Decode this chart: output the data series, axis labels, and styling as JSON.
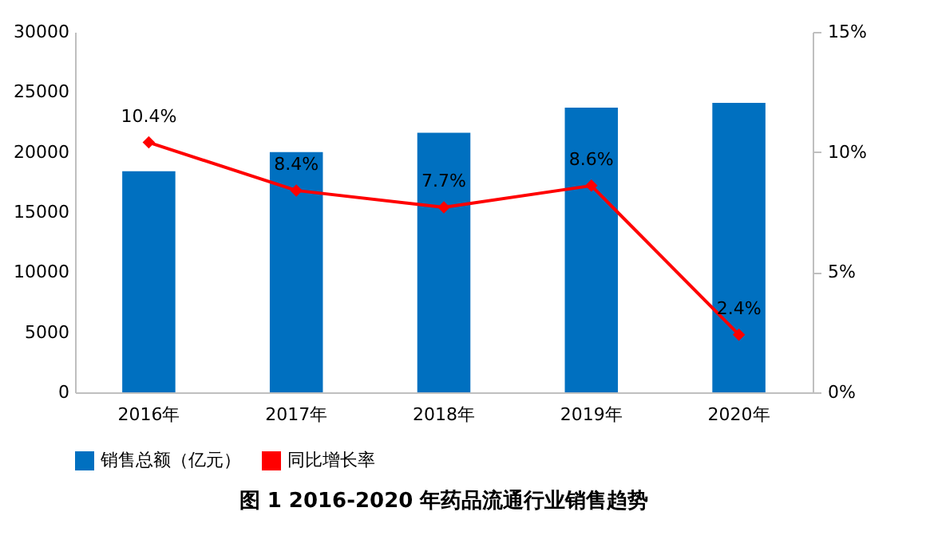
{
  "chart_data": {
    "type": "bar",
    "title": "图 1   2016-2020 年药品流通行业销售趋势",
    "categories": [
      "2016年",
      "2017年",
      "2018年",
      "2019年",
      "2020年"
    ],
    "series": [
      {
        "name": "销售总额（亿元）",
        "color": "#0070c0",
        "values": [
          18400,
          20000,
          21600,
          23700,
          24100
        ]
      },
      {
        "name": "同比增长率",
        "type": "line",
        "axis": "y2",
        "color": "#ff0000",
        "marker": "diamond",
        "values": [
          10.4,
          8.4,
          7.7,
          8.6,
          2.4
        ],
        "value_labels": [
          "10.4%",
          "8.4%",
          "7.7%",
          "8.6%",
          "2.4%"
        ]
      }
    ],
    "ylim": [
      0,
      30000
    ],
    "yticks": [
      0,
      5000,
      10000,
      15000,
      20000,
      25000,
      30000
    ],
    "y2lim": [
      0,
      15
    ],
    "y2ticks": [
      {
        "value": 0,
        "label": "0%"
      },
      {
        "value": 5,
        "label": "5%"
      },
      {
        "value": 10,
        "label": "10%"
      },
      {
        "value": 15,
        "label": "15%"
      }
    ],
    "grid": false,
    "legend": "bottom"
  }
}
